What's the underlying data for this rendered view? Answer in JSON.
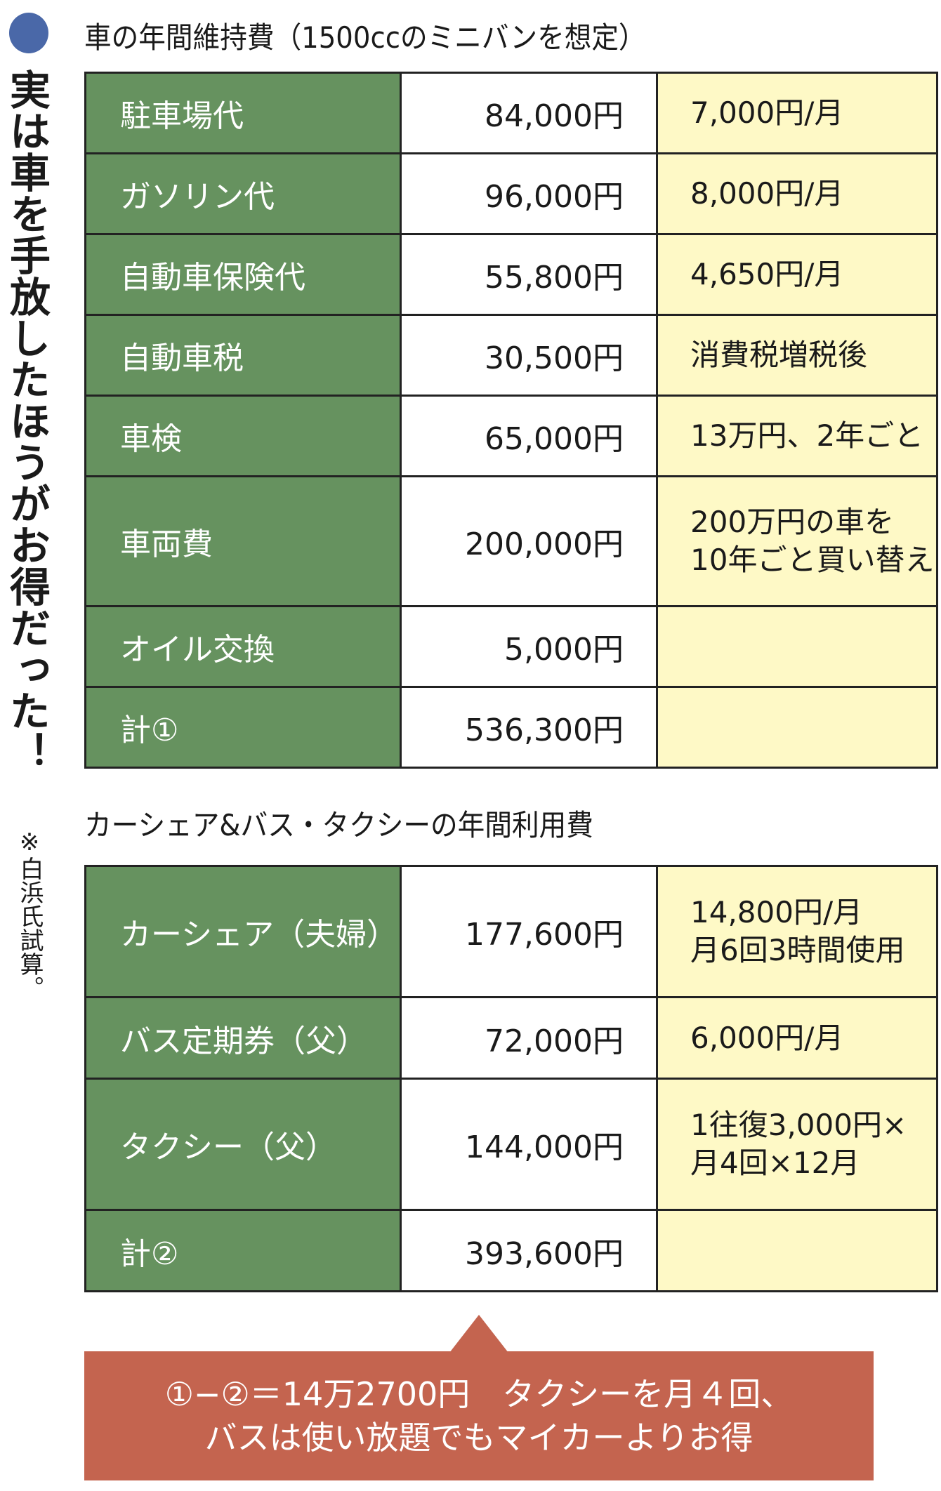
{
  "side": {
    "headline": "実は車を手放したほうがお得だった！",
    "note": "※白浜氏試算。"
  },
  "colors": {
    "label_bg": "#66925f",
    "note_bg": "#fef9c6",
    "callout_bg": "#c4644f",
    "bullet": "#4a68a8"
  },
  "table1": {
    "caption": "車の年間維持費（1500ccのミニバンを想定）",
    "rows": [
      {
        "item": "駐車場代",
        "amount": "84,000円",
        "note": "7,000円/月"
      },
      {
        "item": "ガソリン代",
        "amount": "96,000円",
        "note": "8,000円/月"
      },
      {
        "item": "自動車保険代",
        "amount": "55,800円",
        "note": "4,650円/月"
      },
      {
        "item": "自動車税",
        "amount": "30,500円",
        "note": "消費税増税後"
      },
      {
        "item": "車検",
        "amount": "65,000円",
        "note": "13万円、2年ごと"
      },
      {
        "item": "車両費",
        "amount": "200,000円",
        "note": "200万円の車を\n10年ごと買い替え"
      },
      {
        "item": "オイル交換",
        "amount": "5,000円",
        "note": ""
      },
      {
        "item": "計①",
        "amount": "536,300円",
        "note": ""
      }
    ]
  },
  "table2": {
    "caption": "カーシェア&バス・タクシーの年間利用費",
    "rows": [
      {
        "item": "カーシェア（夫婦）",
        "amount": "177,600円",
        "note": "14,800円/月\n月6回3時間使用"
      },
      {
        "item": "バス定期券（父）",
        "amount": "72,000円",
        "note": "6,000円/月"
      },
      {
        "item": "タクシー（父）",
        "amount": "144,000円",
        "note": "1往復3,000円×\n月4回×12月"
      },
      {
        "item": "計②",
        "amount": "393,600円",
        "note": ""
      }
    ]
  },
  "callout": {
    "line1": "①−②＝14万2700円　タクシーを月４回、",
    "line2": "バスは使い放題でもマイカーよりお得"
  }
}
